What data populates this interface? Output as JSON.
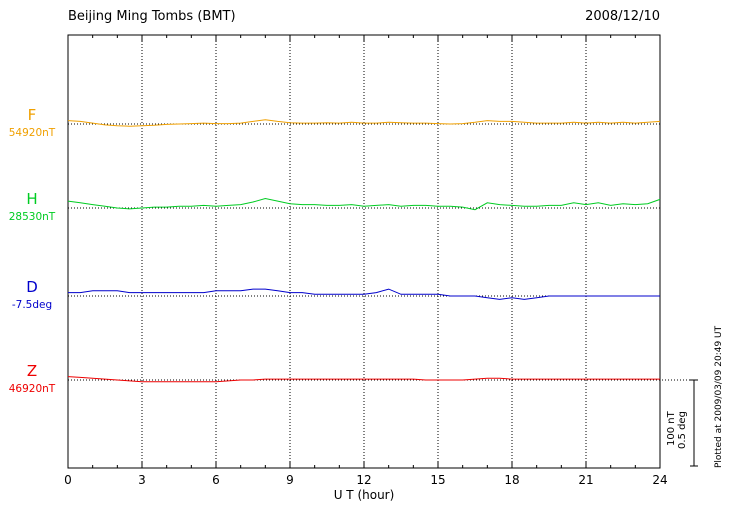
{
  "header": {
    "title": "Beijing Ming Tombs (BMT)",
    "date": "2008/12/10"
  },
  "axis": {
    "xlabel": "U T (hour)",
    "tick_labels": [
      "0",
      "3",
      "6",
      "9",
      "12",
      "15",
      "18",
      "21",
      "24"
    ],
    "tick_values": [
      0,
      3,
      6,
      9,
      12,
      15,
      18,
      21,
      24
    ],
    "minor_tick_hours": 1,
    "xmin": 0,
    "xmax": 24
  },
  "scale_bar": {
    "nt_label": "100 nT",
    "deg_label": "0.5 deg"
  },
  "plotted_at": "Plotted at 2009/03/09 20:49 UT",
  "colors": {
    "F": "#f0a000",
    "H": "#00cc22",
    "D": "#0000cc",
    "Z": "#ee0000",
    "axis": "#000000"
  },
  "chart_data": {
    "type": "line",
    "title": "Beijing Ming Tombs (BMT)",
    "date": "2008/12/10",
    "xlabel": "U T (hour)",
    "xlim": [
      0,
      24
    ],
    "x_step_hours": 0.5,
    "scale": {
      "nT_per_div": 100,
      "deg_per_div": 0.5
    },
    "series": [
      {
        "name": "F",
        "baseline_label": "54920nT",
        "baseline_value": 54920,
        "unit": "nT",
        "color": "#f0a000",
        "deviations": [
          4,
          3,
          1,
          -1,
          -2,
          -2.5,
          -2,
          -1.5,
          -0.5,
          0,
          0.5,
          1,
          0.5,
          0.5,
          1,
          3,
          5,
          3,
          1.5,
          1,
          1,
          1.5,
          1,
          2,
          1,
          1,
          2,
          1.5,
          1,
          1,
          0.5,
          0,
          0.5,
          2,
          4,
          3,
          3,
          2,
          1,
          1,
          1,
          2,
          1,
          2,
          1,
          2,
          1,
          2,
          3
        ]
      },
      {
        "name": "H",
        "baseline_label": "28530nT",
        "baseline_value": 28530,
        "unit": "nT",
        "color": "#00cc22",
        "deviations": [
          8,
          6,
          4,
          2,
          0,
          -1,
          0,
          1,
          1,
          2,
          2,
          3,
          2,
          3,
          4,
          7,
          11,
          8,
          5,
          4,
          4,
          3,
          3,
          4,
          2,
          3,
          4,
          2,
          3,
          3,
          2,
          2,
          1,
          -2,
          6,
          4,
          3,
          2,
          2,
          3,
          3,
          6,
          4,
          6,
          3,
          5,
          4,
          5,
          10
        ]
      },
      {
        "name": "D",
        "baseline_label": "-7.5deg",
        "baseline_value": -7.5,
        "unit": "deg",
        "color": "#0000cc",
        "deviations": [
          0.02,
          0.02,
          0.03,
          0.03,
          0.03,
          0.02,
          0.02,
          0.02,
          0.02,
          0.02,
          0.02,
          0.02,
          0.03,
          0.03,
          0.03,
          0.04,
          0.04,
          0.03,
          0.02,
          0.02,
          0.01,
          0.01,
          0.01,
          0.01,
          0.01,
          0.02,
          0.04,
          0.01,
          0.01,
          0.01,
          0.01,
          0,
          0,
          0,
          -0.01,
          -0.02,
          -0.01,
          -0.02,
          -0.01,
          0,
          0,
          0,
          0,
          0,
          0,
          0,
          0,
          0,
          0
        ]
      },
      {
        "name": "Z",
        "baseline_label": "46920nT",
        "baseline_value": 46920,
        "unit": "nT",
        "color": "#ee0000",
        "deviations": [
          4,
          3,
          2,
          1,
          0,
          -1,
          -2,
          -2,
          -2,
          -2,
          -2,
          -2,
          -2,
          -1,
          0,
          0,
          1,
          1,
          1,
          1,
          1,
          1,
          1,
          1,
          1,
          1,
          1,
          1,
          1,
          0,
          0,
          0,
          0,
          1,
          2,
          2,
          1,
          1,
          1,
          1,
          1,
          1,
          1,
          1,
          1,
          1,
          1,
          1,
          1
        ]
      }
    ]
  }
}
